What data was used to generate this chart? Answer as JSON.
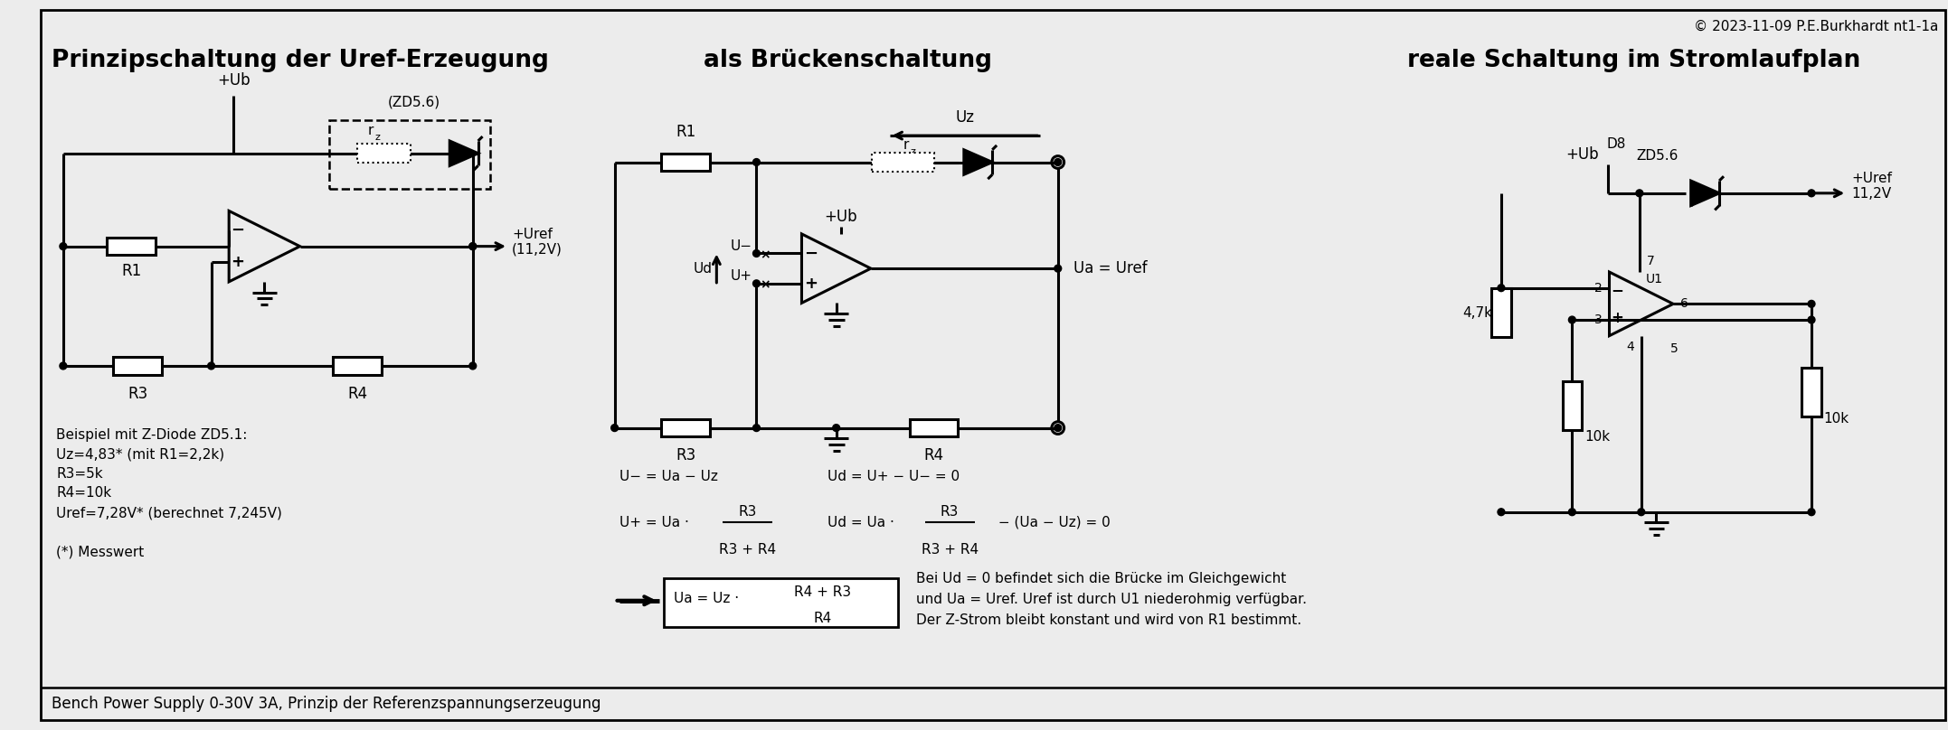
{
  "bg_color": "#ececec",
  "copyright": "© 2023-11-09 P.E.Burkhardt nt1-1a",
  "section1_title": "Prinzipschaltung der Uref-Erzeugung",
  "section2_title": "als Brückenschaltung",
  "section3_title": "reale Schaltung im Stromlaufplan",
  "bottom_text": "Bench Power Supply 0-30V 3A, Prinzip der Referenzspannungserzeugung",
  "example_text": "Beispiel mit Z-Diode ZD5.1:\nUz=4,83* (mit R1=2,2k)\nR3=5k\nR4=10k\nUref=7,28V* (berechnet 7,245V)\n\n(*) Messwert",
  "note_text": "Bei Ud = 0 befindet sich die Brücke im Gleichgewicht\nund Ua = Uref. Uref ist durch U1 niederohmig verfügbar.\nDer Z-Strom bleibt konstant und wird von R1 bestimmt."
}
